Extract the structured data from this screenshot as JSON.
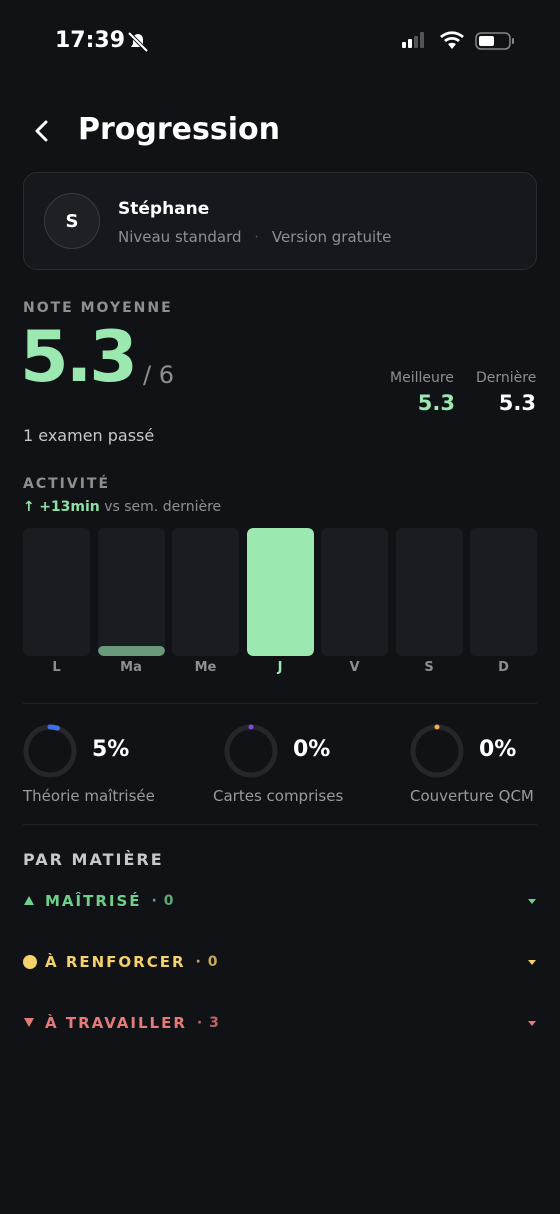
{
  "status_bar": {
    "time": "17:39"
  },
  "header": {
    "title": "Progression"
  },
  "profile": {
    "initial": "S",
    "name": "Stéphane",
    "level": "Niveau standard",
    "separator": "·",
    "plan": "Version gratuite"
  },
  "score": {
    "label": "NOTE MOYENNE",
    "value": "5.3",
    "max": "/ 6",
    "best_label": "Meilleure",
    "best": "5.3",
    "last_label": "Dernière",
    "last": "5.3",
    "exams": "1 examen passé"
  },
  "activity": {
    "label": "ACTIVITÉ",
    "arrow": "↑",
    "delta": "+13min",
    "comparison": "vs sem. dernière",
    "days": [
      "L",
      "Ma",
      "Me",
      "J",
      "V",
      "S",
      "D"
    ],
    "values": [
      0,
      1,
      0,
      16,
      0,
      0,
      0
    ],
    "current_day": 3
  },
  "stats": [
    {
      "value": 5,
      "value_label": "5%",
      "label": "Théorie maîtrisée",
      "color": "#3f6fe6"
    },
    {
      "value": 0,
      "value_label": "0%",
      "label": "Cartes comprises",
      "color": "#7a4fe0"
    },
    {
      "value": 0,
      "value_label": "0%",
      "label": "Couverture QCM",
      "color": "#f0b24a"
    }
  ],
  "subjects": {
    "title": "PAR MATIÈRE",
    "groups": [
      {
        "label": "MAÎTRISÉ",
        "count": "· 0",
        "color": "#6fd08c"
      },
      {
        "label": "À RENFORCER",
        "count": "· 0",
        "color": "#f3d26b"
      },
      {
        "label": "À TRAVAILLER",
        "count": "· 3",
        "color": "#e57a7a"
      }
    ]
  }
}
